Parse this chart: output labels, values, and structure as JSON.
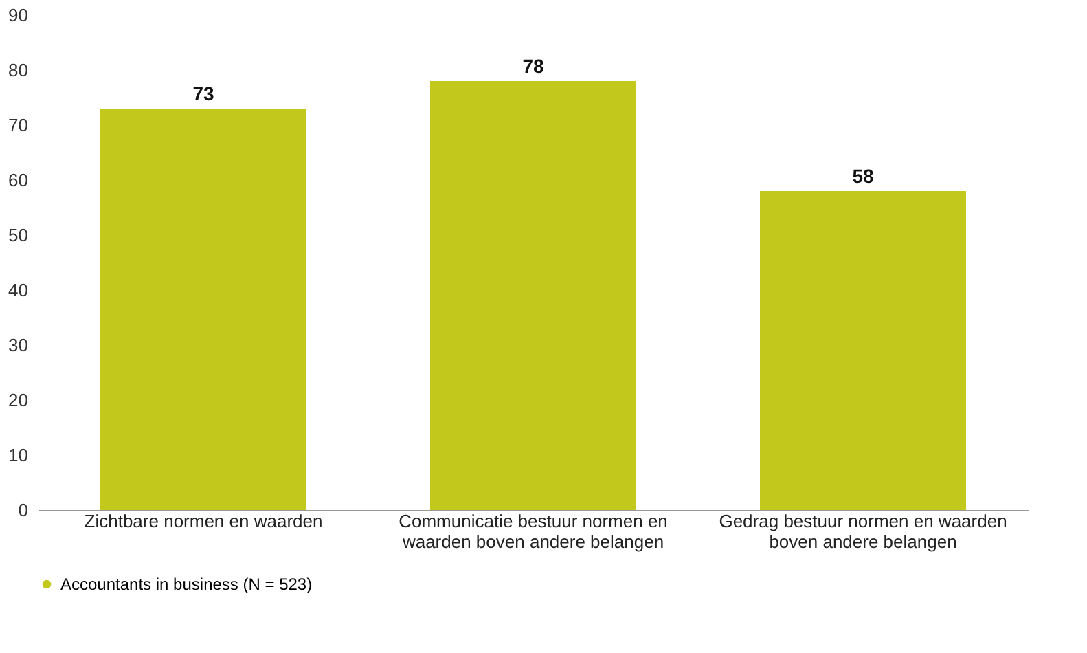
{
  "chart_data": {
    "type": "bar",
    "categories": [
      "Zichtbare normen en waarden",
      "Communicatie bestuur normen en waarden boven andere belangen",
      "Gedrag bestuur normen en waarden boven andere belangen"
    ],
    "series": [
      {
        "name": "Accountants in business (N = 523)",
        "color": "#c3c81c",
        "values": [
          73,
          78,
          58
        ]
      }
    ],
    "ylim": [
      0,
      90
    ],
    "yticks": [
      0,
      10,
      20,
      30,
      40,
      50,
      60,
      70,
      80,
      90
    ],
    "data_labels": true,
    "grid": false,
    "legend": "bottom"
  }
}
